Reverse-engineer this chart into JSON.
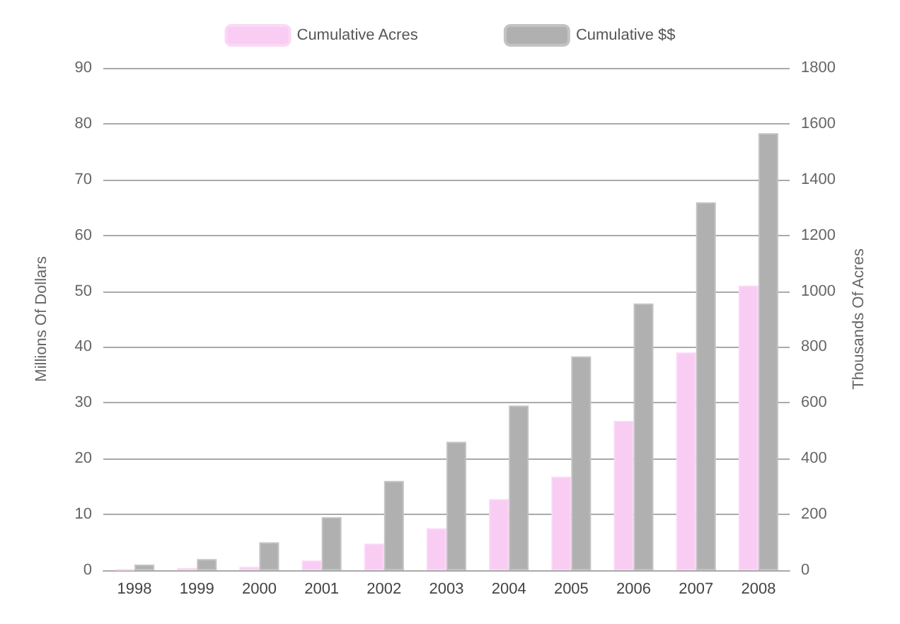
{
  "chart_data": {
    "type": "bar",
    "categories": [
      "1998",
      "1999",
      "2000",
      "2001",
      "2002",
      "2003",
      "2004",
      "2005",
      "2006",
      "2007",
      "2008"
    ],
    "series": [
      {
        "name": "Cumulative Acres",
        "color": "#f9ccf3",
        "axis": "y2",
        "values": [
          2,
          8,
          12,
          35,
          95,
          150,
          255,
          335,
          535,
          780,
          1020
        ]
      },
      {
        "name": "Cumulative $$",
        "color": "#b0b0b0",
        "values": [
          1,
          2,
          5,
          9.5,
          16,
          23,
          29.5,
          38.3,
          47.8,
          65.9,
          78.3
        ]
      }
    ],
    "ylabel": "Millions Of Dollars",
    "y2label": "Thousands Of Acres",
    "ylim": [
      0,
      90
    ],
    "yticks": [
      0,
      10,
      20,
      30,
      40,
      50,
      60,
      70,
      80,
      90
    ],
    "y2lim": [
      0,
      1800
    ],
    "y2ticks": [
      0,
      200,
      400,
      600,
      800,
      1000,
      1200,
      1400,
      1600,
      1800
    ],
    "grid": "y",
    "legend": "top"
  }
}
